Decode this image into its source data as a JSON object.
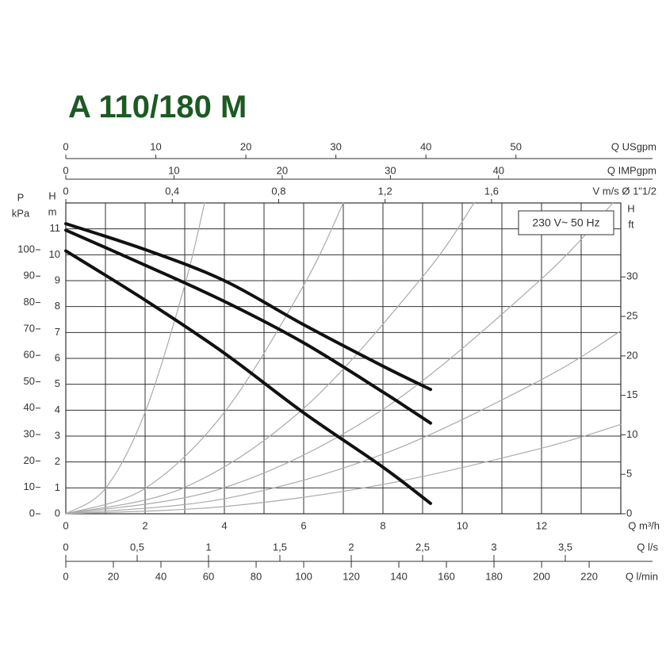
{
  "chart_data": {
    "type": "line",
    "title": "A 110/180 M",
    "annotation": "230 V~ 50 Hz",
    "xlabel": "Q m³/h",
    "xlim": [
      0,
      14
    ],
    "xticks": [
      0,
      2,
      4,
      6,
      8,
      10,
      12
    ],
    "ylabel": "H",
    "yunit": "m",
    "ylim": [
      0,
      12
    ],
    "yticks": [
      0,
      1,
      2,
      3,
      4,
      5,
      6,
      7,
      8,
      9,
      10,
      11
    ],
    "grid": true,
    "top_axes": [
      {
        "label": "Q USgpm",
        "lim": [
          0,
          61.65
        ],
        "ticks": [
          0,
          10,
          20,
          30,
          40,
          50
        ]
      },
      {
        "label": "Q IMPgpm",
        "lim": [
          0,
          51.3
        ],
        "ticks": [
          0,
          10,
          20,
          30,
          40
        ]
      },
      {
        "label": "V m/s Ø 1\"1/2",
        "lim": [
          0,
          2.086
        ],
        "ticks": [
          0,
          {
            "value": 0.4,
            "label": "0,4"
          },
          {
            "value": 0.8,
            "label": "0,8"
          },
          {
            "value": 1.2,
            "label": "1,2"
          },
          {
            "value": 1.6,
            "label": "1,6"
          }
        ]
      }
    ],
    "bottom_axes": [
      {
        "label": "Q l/s",
        "lim": [
          0,
          3.889
        ],
        "ticks": [
          0,
          {
            "value": 0.5,
            "label": "0,5"
          },
          1,
          {
            "value": 1.5,
            "label": "1,5"
          },
          2,
          {
            "value": 2.5,
            "label": "2,5"
          },
          3,
          {
            "value": 3.5,
            "label": "3,5"
          }
        ]
      },
      {
        "label": "Q l/min",
        "lim": [
          0,
          233.3
        ],
        "ticks": [
          0,
          20,
          40,
          60,
          80,
          100,
          120,
          140,
          160,
          180,
          200,
          220
        ]
      }
    ],
    "left_axis": {
      "label": "P",
      "unit": "kPa",
      "lim": [
        0,
        117.7
      ],
      "ticks": [
        0,
        10,
        20,
        30,
        40,
        50,
        60,
        70,
        80,
        90,
        100
      ]
    },
    "right_axis": {
      "label": "H",
      "unit": "ft",
      "lim": [
        0,
        39.37
      ],
      "ticks": [
        0,
        5,
        10,
        15,
        20,
        25,
        30
      ]
    },
    "series": [
      {
        "color": "#aaaaaa",
        "x": [
          0,
          1,
          2,
          3,
          3.5
        ],
        "values": [
          0,
          0.98,
          3.92,
          8.82,
          12
        ]
      },
      {
        "color": "#aaaaaa",
        "x": [
          0,
          2,
          4,
          6,
          7
        ],
        "values": [
          0,
          0.98,
          3.92,
          8.82,
          12
        ]
      },
      {
        "color": "#aaaaaa",
        "x": [
          0,
          3,
          6,
          9,
          10.3
        ],
        "values": [
          0,
          1.02,
          4.07,
          9.15,
          12
        ]
      },
      {
        "color": "#aaaaaa",
        "x": [
          0,
          4,
          8,
          12,
          13.8
        ],
        "values": [
          0,
          1.01,
          4.03,
          9.07,
          12
        ]
      },
      {
        "color": "#aaaaaa",
        "x": [
          0,
          4,
          8,
          12,
          14
        ],
        "values": [
          0,
          0.58,
          2.3,
          5.18,
          7.06
        ]
      },
      {
        "color": "#aaaaaa",
        "x": [
          0,
          4,
          8,
          12,
          14
        ],
        "values": [
          0,
          0.28,
          1.13,
          2.53,
          3.45
        ]
      },
      {
        "color": "#111111",
        "x": [
          0,
          2,
          4,
          6,
          8,
          9.2
        ],
        "values": [
          11.2,
          10.2,
          9.0,
          7.3,
          5.7,
          4.8
        ]
      },
      {
        "color": "#111111",
        "x": [
          0,
          2,
          4,
          6,
          8,
          9.2
        ],
        "values": [
          10.95,
          9.6,
          8.2,
          6.6,
          4.7,
          3.5
        ]
      },
      {
        "color": "#111111",
        "x": [
          0,
          2,
          4,
          6,
          8,
          9.2
        ],
        "values": [
          10.15,
          8.25,
          6.2,
          3.9,
          1.8,
          0.4
        ]
      }
    ]
  }
}
